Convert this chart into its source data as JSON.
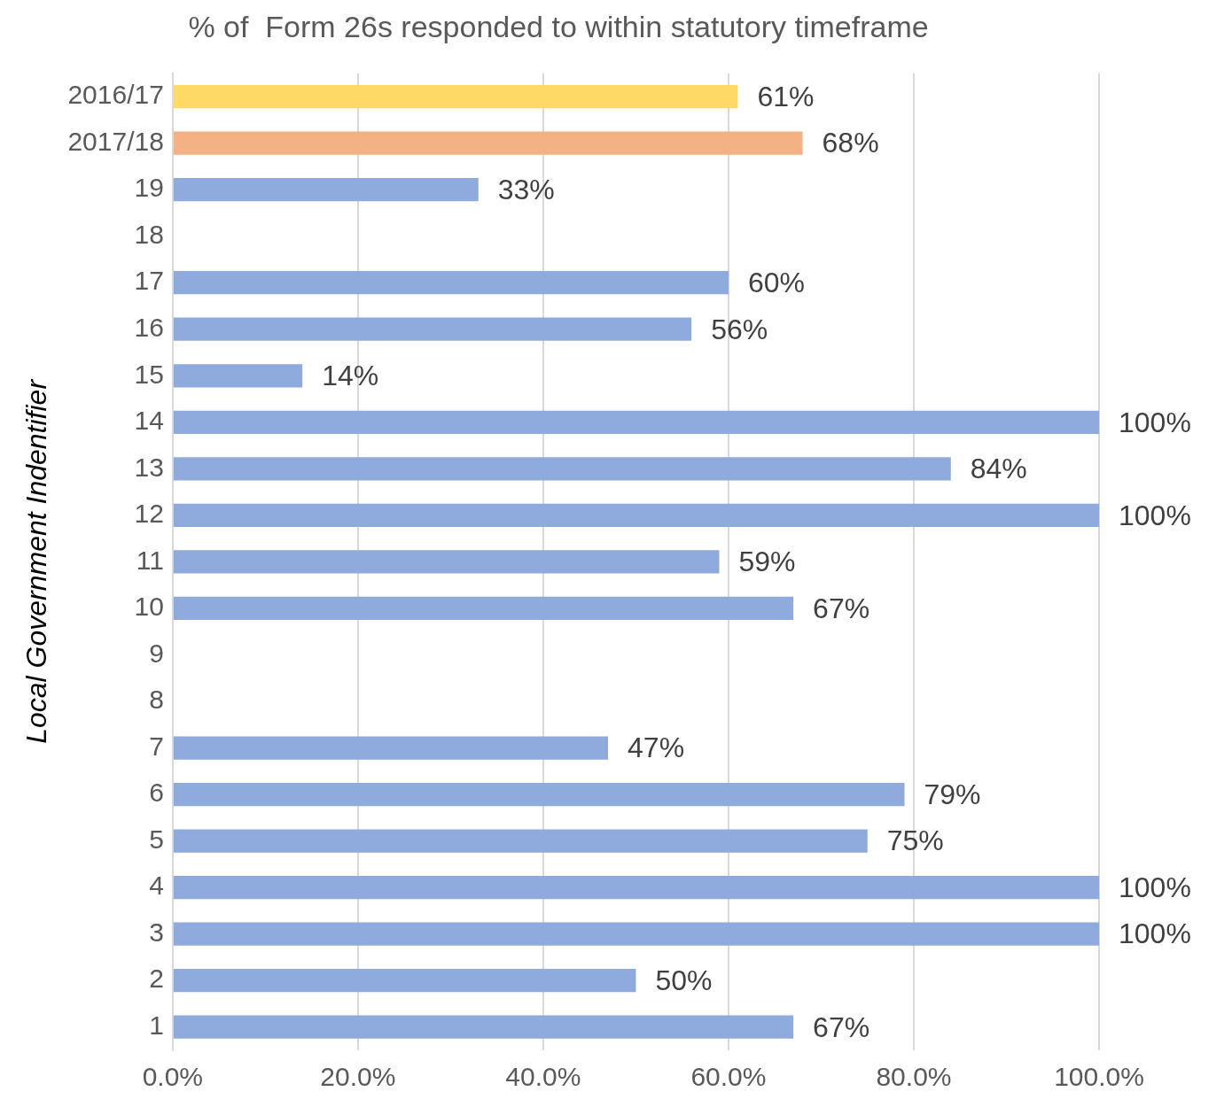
{
  "chart_data": {
    "type": "bar",
    "orientation": "horizontal",
    "title": "% of  Form 26s responded to within statutory timeframe",
    "ylabel": "Local Government Indentifier",
    "categories": [
      "2016/17",
      "2017/18",
      "19",
      "18",
      "17",
      "16",
      "15",
      "14",
      "13",
      "12",
      "11",
      "10",
      "9",
      "8",
      "7",
      "6",
      "5",
      "4",
      "3",
      "2",
      "1"
    ],
    "values": [
      61,
      68,
      33,
      null,
      60,
      56,
      14,
      100,
      84,
      100,
      59,
      67,
      null,
      null,
      47,
      79,
      75,
      100,
      100,
      50,
      67
    ],
    "value_labels": [
      "61%",
      "68%",
      "33%",
      null,
      "60%",
      "56%",
      "14%",
      "100%",
      "84%",
      "100%",
      "59%",
      "67%",
      null,
      null,
      "47%",
      "79%",
      "75%",
      "100%",
      "100%",
      "50%",
      "67%"
    ],
    "colors": [
      "#ffd966",
      "#f4b183",
      "#8faadc",
      "#8faadc",
      "#8faadc",
      "#8faadc",
      "#8faadc",
      "#8faadc",
      "#8faadc",
      "#8faadc",
      "#8faadc",
      "#8faadc",
      "#8faadc",
      "#8faadc",
      "#8faadc",
      "#8faadc",
      "#8faadc",
      "#8faadc",
      "#8faadc",
      "#8faadc",
      "#8faadc"
    ],
    "xlim": [
      0,
      100
    ],
    "xticks": [
      {
        "value": 0,
        "label": "0.0%"
      },
      {
        "value": 20,
        "label": "20.0%"
      },
      {
        "value": 40,
        "label": "40.0%"
      },
      {
        "value": 60,
        "label": "60.0%"
      },
      {
        "value": 80,
        "label": "80.0%"
      },
      {
        "value": 100,
        "label": "100.0%"
      }
    ],
    "grid": "x",
    "legend": false
  }
}
